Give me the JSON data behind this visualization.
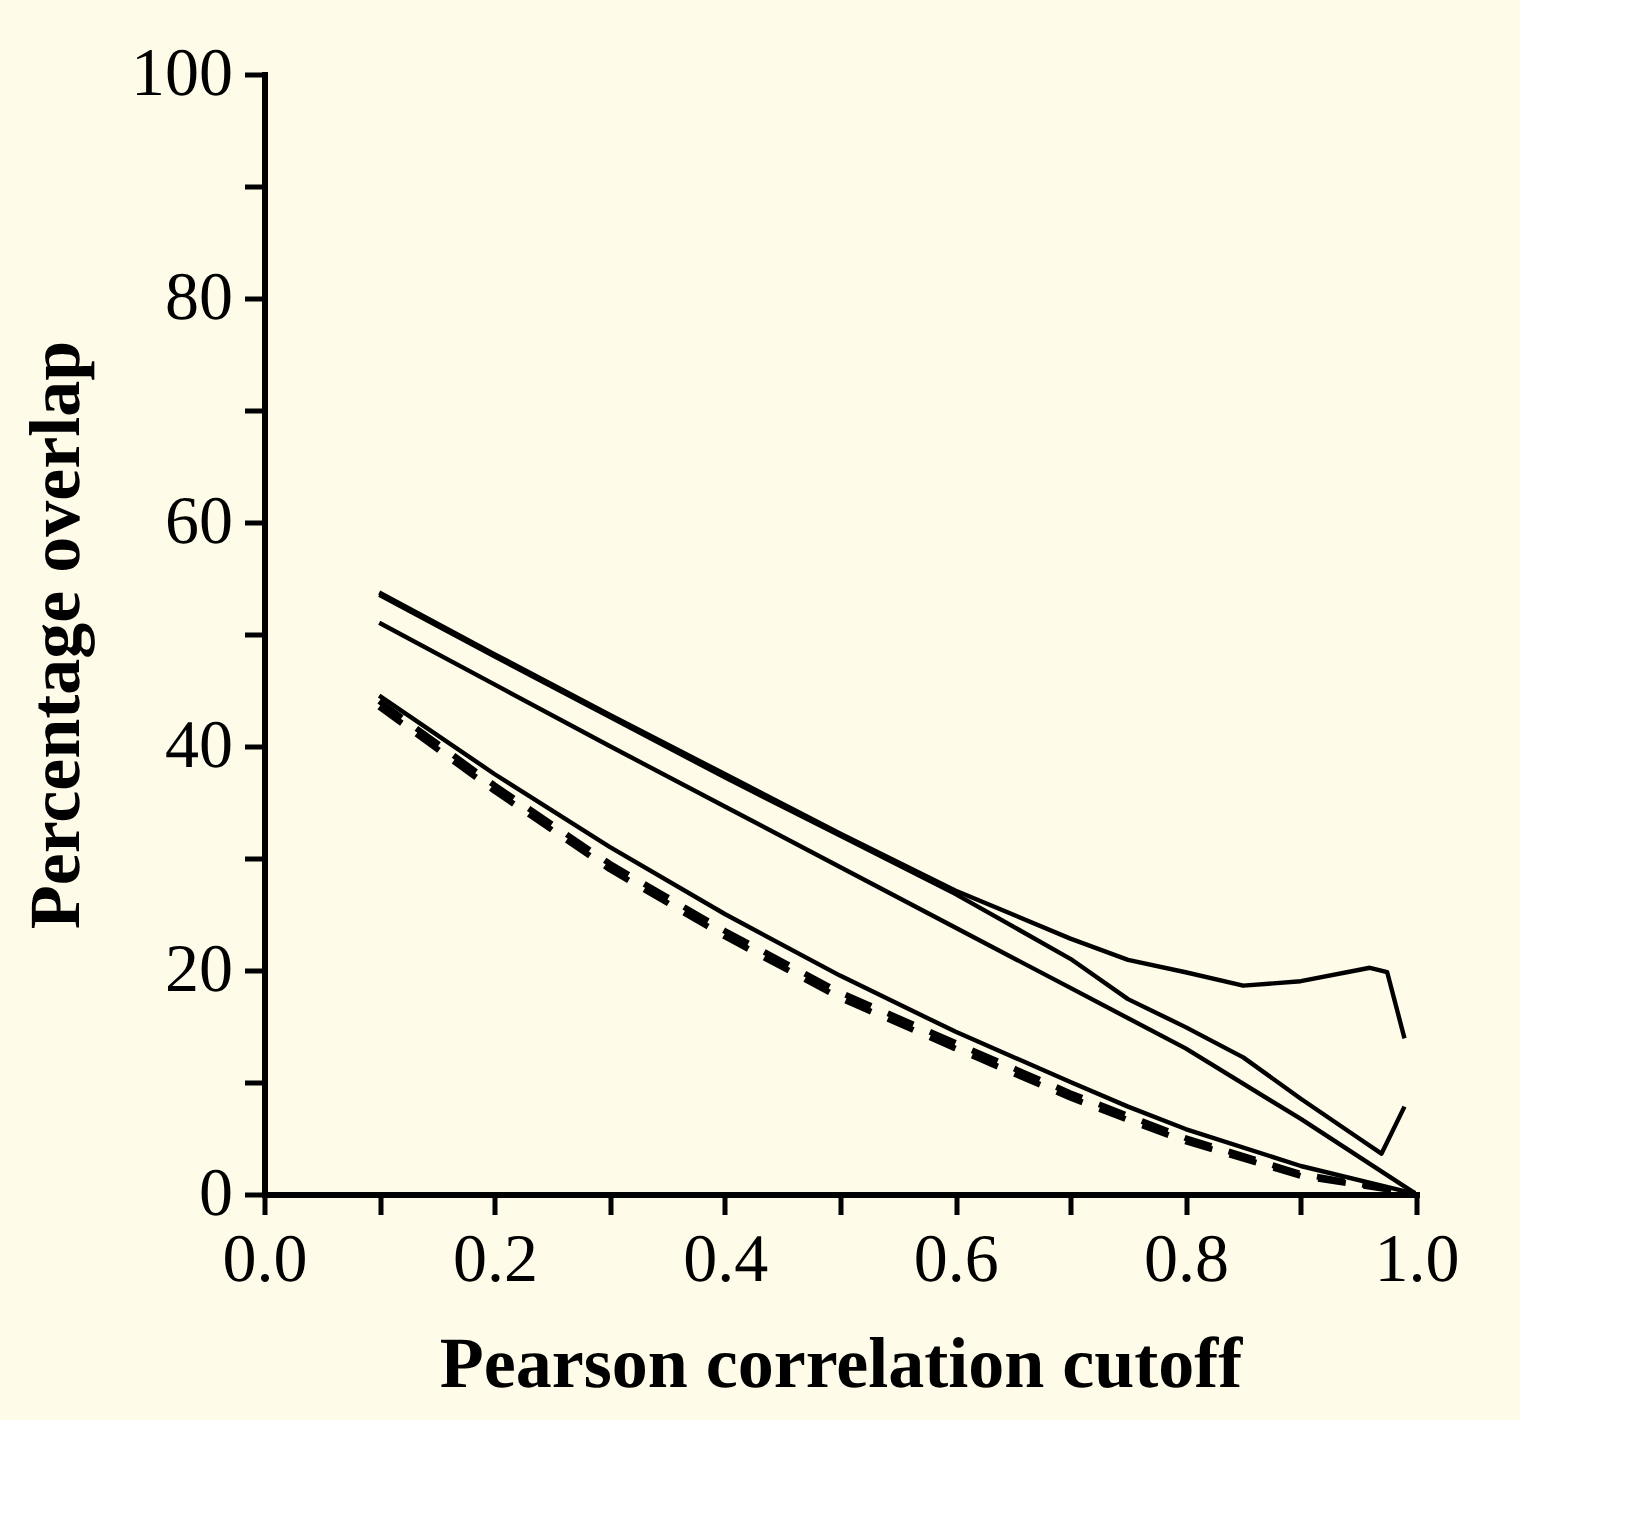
{
  "chart_data": {
    "type": "line",
    "xlabel": "Pearson correlation cutoff",
    "ylabel": "Percentage overlap",
    "xlim": [
      0,
      1
    ],
    "ylim": [
      0,
      100
    ],
    "xticks": [
      {
        "value": 0,
        "label": "0.0"
      },
      {
        "value": 0.1,
        "label": null
      },
      0.2,
      {
        "value": 0.3,
        "label": null
      },
      0.4,
      {
        "value": 0.5,
        "label": null
      },
      0.6,
      {
        "value": 0.7,
        "label": null
      },
      0.8,
      {
        "value": 0.9,
        "label": null
      },
      {
        "value": 1,
        "label": "1.0"
      }
    ],
    "yticks": [
      0,
      {
        "value": 10,
        "label": null
      },
      20,
      {
        "value": 30,
        "label": null
      },
      40,
      {
        "value": 50,
        "label": null
      },
      60,
      {
        "value": 70,
        "label": null
      },
      80,
      {
        "value": 90,
        "label": null
      },
      100
    ],
    "grid": false,
    "marker": "none",
    "series": [
      {
        "color": "#000000",
        "line_style": "solid",
        "x": [
          0.1,
          0.2,
          0.3,
          0.4,
          0.5,
          0.6,
          0.7,
          0.75,
          0.8,
          0.85,
          0.9,
          0.95,
          0.96,
          0.975,
          0.99
        ],
        "values": [
          53.7,
          48.2,
          42.8,
          37.5,
          32.2,
          27.1,
          22.8,
          20.9,
          19.8,
          18.6,
          19,
          20,
          20.2,
          19.8,
          13.9
        ]
      },
      {
        "color": "#000000",
        "line_style": "solid",
        "x": [
          0.1,
          0.2,
          0.3,
          0.4,
          0.5,
          0.6,
          0.7,
          0.75,
          0.8,
          0.85,
          0.9,
          0.95,
          0.97,
          0.99
        ],
        "values": [
          53.5,
          48,
          42.6,
          37.2,
          32,
          26.8,
          21,
          17.4,
          14.9,
          12.2,
          8.5,
          5,
          3.6,
          7.8
        ]
      },
      {
        "color": "#000000",
        "line_style": "solid",
        "x": [
          0.1,
          0.2,
          0.3,
          0.4,
          0.5,
          0.6,
          0.7,
          0.8,
          0.9,
          1.0
        ],
        "values": [
          51,
          45.5,
          40,
          34.6,
          29.2,
          23.8,
          18.4,
          13,
          6.7,
          0
        ]
      },
      {
        "color": "#000000",
        "line_style": "solid",
        "x": [
          0.1,
          0.2,
          0.3,
          0.4,
          0.5,
          0.6,
          0.7,
          0.75,
          0.8,
          0.9,
          1.0
        ],
        "values": [
          44.5,
          37.5,
          31,
          25,
          19.5,
          14.5,
          10,
          7.8,
          5.8,
          2.5,
          0
        ]
      },
      {
        "color": "#000000",
        "line_style": "dashed",
        "x": [
          0.1,
          0.2,
          0.3,
          0.4,
          0.5,
          0.6,
          0.7,
          0.75,
          0.8,
          0.9,
          1.0
        ],
        "values": [
          44,
          36.5,
          29.5,
          23.5,
          18,
          13.5,
          9,
          7,
          5,
          1.8,
          0
        ]
      },
      {
        "color": "#000000",
        "line_style": "dashed",
        "x": [
          0.1,
          0.2,
          0.3,
          0.4,
          0.5,
          0.6,
          0.7,
          0.75,
          0.8,
          0.9,
          1.0
        ],
        "values": [
          43.5,
          36,
          29,
          23,
          17.5,
          13,
          8.6,
          6.6,
          4.7,
          1.6,
          0
        ]
      }
    ]
  }
}
